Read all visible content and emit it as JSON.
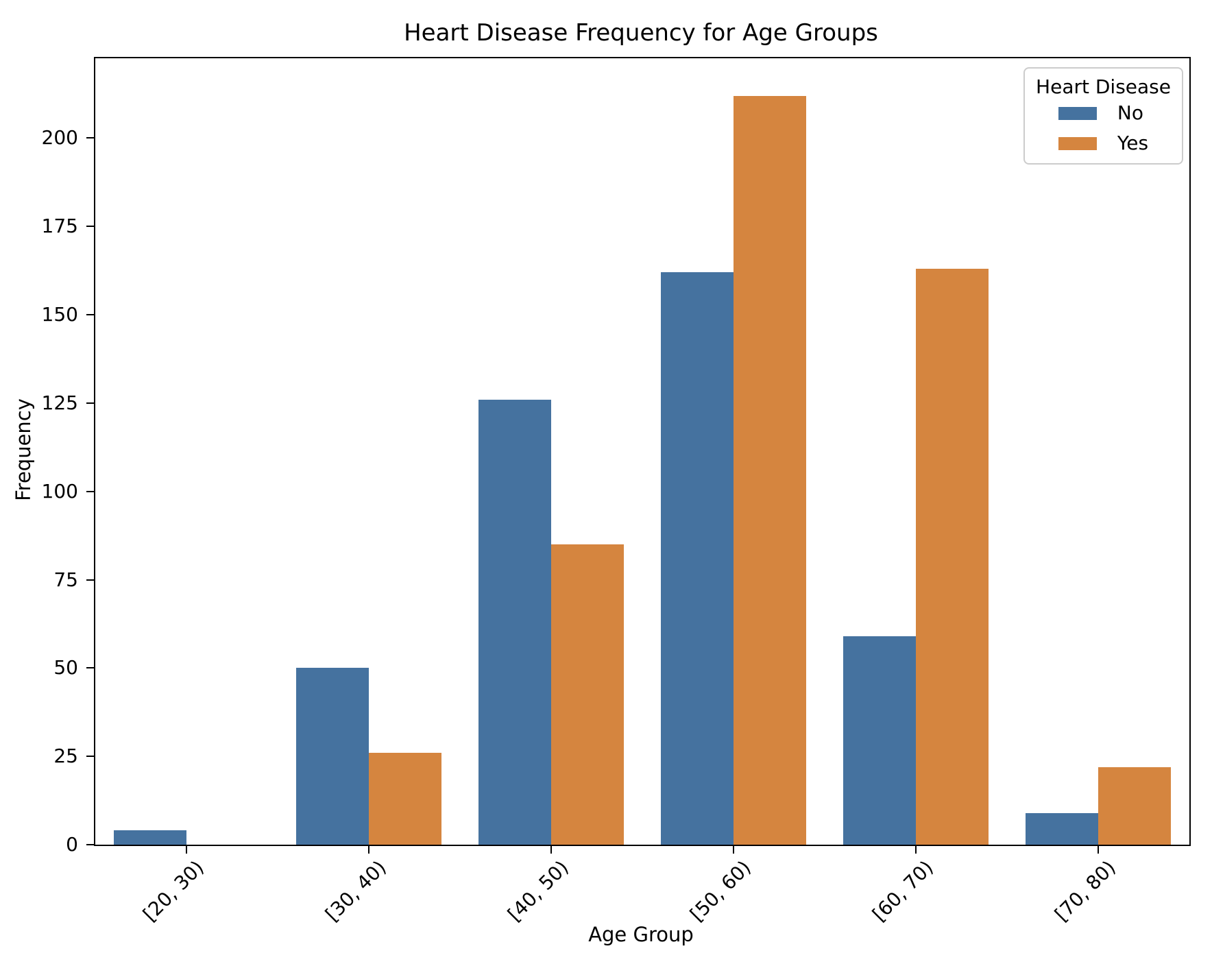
{
  "chart_data": {
    "type": "bar",
    "title": "Heart Disease Frequency for Age Groups",
    "xlabel": "Age Group",
    "ylabel": "Frequency",
    "categories": [
      "[20, 30)",
      "[30, 40)",
      "[40, 50)",
      "[50, 60)",
      "[60, 70)",
      "[70, 80)"
    ],
    "series": [
      {
        "name": "No",
        "color": "#45729F",
        "values": [
          4,
          50,
          126,
          162,
          59,
          9
        ]
      },
      {
        "name": "Yes",
        "color": "#D5853F",
        "values": [
          0,
          26,
          85,
          212,
          163,
          22
        ]
      }
    ],
    "legend_title": "Heart Disease",
    "legend_position": "upper right",
    "y_ticks": [
      0,
      25,
      50,
      75,
      100,
      125,
      150,
      175,
      200
    ],
    "ylim": [
      0,
      222.6
    ],
    "x_tick_rotation": 45,
    "grid": false,
    "background_color": "#ffffff",
    "spine_color": "#000000"
  }
}
